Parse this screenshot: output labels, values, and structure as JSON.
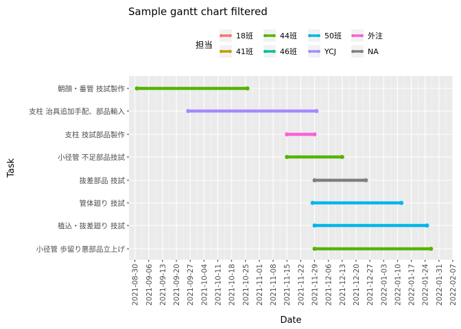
{
  "chart_data": {
    "type": "gantt",
    "title": "Sample gantt chart filtered",
    "xlabel": "Date",
    "ylabel": "Task",
    "xlim": [
      "2021-08-27",
      "2022-02-07"
    ],
    "x_ticks": [
      "2021-08-30",
      "2021-09-06",
      "2021-09-13",
      "2021-09-20",
      "2021-09-27",
      "2021-10-04",
      "2021-10-11",
      "2021-10-18",
      "2021-10-25",
      "2021-11-01",
      "2021-11-08",
      "2021-11-15",
      "2021-11-22",
      "2021-11-29",
      "2021-12-06",
      "2021-12-13",
      "2021-12-20",
      "2021-12-27",
      "2022-01-03",
      "2022-01-10",
      "2022-01-17",
      "2022-01-24",
      "2022-01-31",
      "2022-02-07"
    ],
    "grid": true,
    "legend": {
      "title": "担当",
      "position": "top",
      "entries": [
        {
          "label": "18班",
          "color": "#F8766D"
        },
        {
          "label": "41班",
          "color": "#C49A00"
        },
        {
          "label": "44班",
          "color": "#53B400"
        },
        {
          "label": "46班",
          "color": "#00C094"
        },
        {
          "label": "50班",
          "color": "#00B6EB"
        },
        {
          "label": "YCJ",
          "color": "#A58AFF"
        },
        {
          "label": "外注",
          "color": "#FB61D7"
        },
        {
          "label": "NA",
          "color": "#7F7F7F"
        }
      ]
    },
    "tasks": [
      {
        "name": "朝顔・番管 技試製作",
        "start": "2021-08-31",
        "end": "2021-10-26",
        "group": "44班",
        "color": "#53B400"
      },
      {
        "name": "支柱 治具追加手配、部品輸入",
        "start": "2021-09-26",
        "end": "2021-11-30",
        "group": "YCJ",
        "color": "#A58AFF"
      },
      {
        "name": "支柱 技試部品製作",
        "start": "2021-11-15",
        "end": "2021-11-29",
        "group": "外注",
        "color": "#FB61D7"
      },
      {
        "name": "小径管 不足部品技試",
        "start": "2021-11-15",
        "end": "2021-12-13",
        "group": "44班",
        "color": "#53B400"
      },
      {
        "name": "抜差部品 技試",
        "start": "2021-11-29",
        "end": "2021-12-25",
        "group": "NA",
        "color": "#7F7F7F"
      },
      {
        "name": "管体廻り 技試",
        "start": "2021-11-28",
        "end": "2022-01-12",
        "group": "50班",
        "color": "#00B6EB"
      },
      {
        "name": "植込・抜差廻り 技試",
        "start": "2021-11-29",
        "end": "2022-01-25",
        "group": "50班",
        "color": "#00B6EB"
      },
      {
        "name": "小径管 歩留り悪部品立上げ",
        "start": "2021-11-29",
        "end": "2022-01-27",
        "group": "44班",
        "color": "#53B400"
      }
    ]
  }
}
